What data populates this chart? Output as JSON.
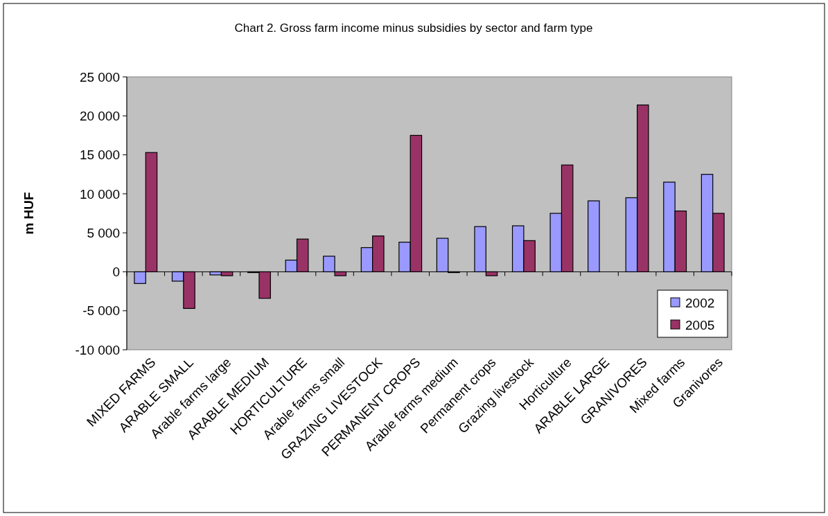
{
  "chart_data": {
    "type": "bar",
    "title": "Chart 2. Gross farm income minus subsidies by sector and farm type",
    "ylabel": "m HUF",
    "categories": [
      "MIXED FARMS",
      "ARABLE SMALL",
      "Arable farms large",
      "ARABLE MEDIUM",
      "HORTICULTURE",
      "Arable farms small",
      "GRAZING LIVESTOCK",
      "PERMANENT CROPS",
      "Arable farms medium",
      "Permanent crops",
      "Grazing livestock",
      "Horticulture",
      "ARABLE LARGE",
      "GRANIVORES",
      "Mixed farms",
      "Granivores"
    ],
    "series": [
      {
        "name": "2002",
        "color": "#9999ff",
        "values": [
          -1500,
          -1200,
          -400,
          -100,
          1500,
          2000,
          3100,
          3800,
          4300,
          5800,
          5900,
          7500,
          9100,
          9500,
          11500,
          12500
        ]
      },
      {
        "name": "2005",
        "color": "#993366",
        "values": [
          15300,
          -4700,
          -500,
          -3400,
          4200,
          -500,
          4600,
          17500,
          -100,
          -500,
          4000,
          13700,
          null,
          21400,
          7800,
          7500
        ]
      }
    ],
    "ylim": [
      -10000,
      25000
    ],
    "yticks": [
      {
        "value": -10000,
        "label": "-10 000"
      },
      {
        "value": -5000,
        "label": "-5 000"
      },
      0,
      {
        "value": 5000,
        "label": "5 000"
      },
      {
        "value": 10000,
        "label": "10 000"
      },
      {
        "value": 15000,
        "label": "15 000"
      },
      {
        "value": 20000,
        "label": "20 000"
      },
      {
        "value": 25000,
        "label": "25 000"
      }
    ],
    "legend": "bottom right"
  }
}
